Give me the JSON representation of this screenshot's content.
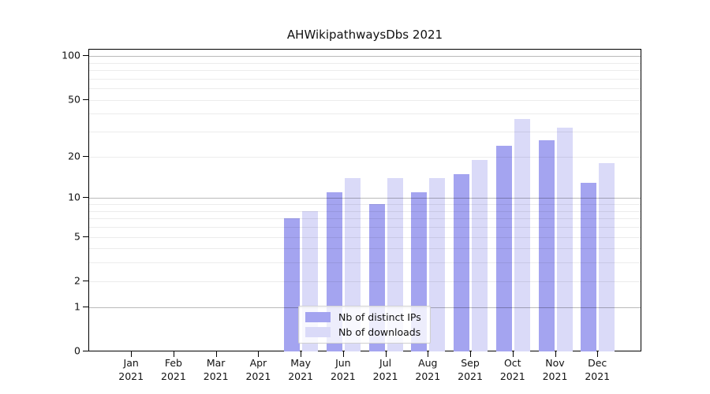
{
  "title": "AHWikipathwaysDbs 2021",
  "chart_data": {
    "type": "bar",
    "title": "AHWikipathwaysDbs 2021",
    "categories": [
      "Jan 2021",
      "Feb 2021",
      "Mar 2021",
      "Apr 2021",
      "May 2021",
      "Jun 2021",
      "Jul 2021",
      "Aug 2021",
      "Sep 2021",
      "Oct 2021",
      "Nov 2021",
      "Dec 2021"
    ],
    "series": [
      {
        "name": "Nb of distinct IPs",
        "color": "#a4a4f0",
        "values": [
          0,
          0,
          0,
          0,
          7,
          11,
          9,
          11,
          15,
          24,
          26,
          13
        ]
      },
      {
        "name": "Nb of downloads",
        "color": "#dadaf8",
        "values": [
          0,
          0,
          0,
          0,
          8,
          14,
          14,
          14,
          19,
          37,
          32,
          18
        ]
      }
    ],
    "xlabel": "",
    "ylabel": "",
    "yscale": "log1p",
    "ylim": [
      0,
      112
    ],
    "yticks": [
      0,
      1,
      2,
      5,
      10,
      20,
      50,
      100
    ],
    "major_gridlines": [
      1,
      10,
      100
    ],
    "minor_gridlines": [
      2,
      3,
      4,
      5,
      6,
      7,
      8,
      9,
      20,
      30,
      40,
      50,
      60,
      70,
      80,
      90
    ],
    "grid": true,
    "legend_position": "bottom-center",
    "colors": {
      "bar_distinct_ips": "#a4a4f0",
      "bar_downloads": "#dadaf8",
      "spine": "#000000",
      "major_grid": "#b9b9b9",
      "minor_grid": "#ebebeb"
    }
  }
}
